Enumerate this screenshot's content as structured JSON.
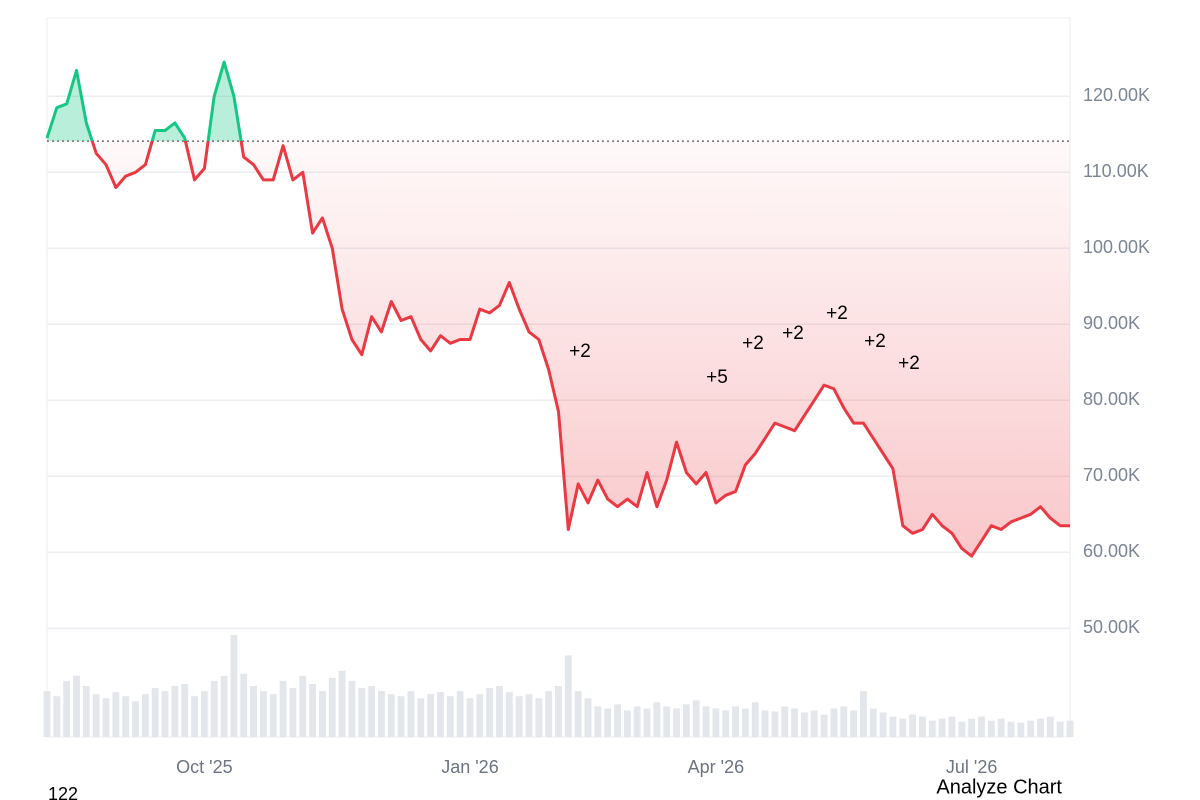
{
  "chart_data": {
    "type": "baseline",
    "baseline": 114100,
    "up_color": "#16c784",
    "down_color": "#ea3943",
    "volume_color": "#e3e7ec",
    "ylim": [
      35700,
      130300
    ],
    "yticks": [
      {
        "value": 50000,
        "label": "50.00K"
      },
      {
        "value": 60000,
        "label": "60.00K"
      },
      {
        "value": 70000,
        "label": "70.00K"
      },
      {
        "value": 80000,
        "label": "80.00K"
      },
      {
        "value": 90000,
        "label": "90.00K"
      },
      {
        "value": 100000,
        "label": "100.00K"
      },
      {
        "value": 110000,
        "label": "110.00K"
      },
      {
        "value": 120000,
        "label": "120.00K"
      }
    ],
    "grid": true,
    "vlim": [
      0,
      100
    ],
    "categories": [
      null,
      null,
      null,
      null,
      null,
      null,
      null,
      null,
      null,
      null,
      null,
      null,
      null,
      null,
      null,
      null,
      "Oct '25",
      null,
      null,
      null,
      null,
      null,
      null,
      null,
      null,
      null,
      null,
      null,
      null,
      null,
      null,
      null,
      null,
      null,
      null,
      null,
      null,
      null,
      null,
      null,
      null,
      null,
      null,
      "Jan '26",
      null,
      null,
      null,
      null,
      null,
      null,
      null,
      null,
      null,
      null,
      null,
      null,
      null,
      null,
      null,
      null,
      null,
      null,
      null,
      null,
      null,
      null,
      null,
      null,
      "Apr '26",
      null,
      null,
      null,
      null,
      null,
      null,
      null,
      null,
      null,
      null,
      null,
      null,
      null,
      null,
      null,
      null,
      null,
      null,
      null,
      null,
      null,
      null,
      null,
      null,
      null,
      "Jul '26",
      null,
      null,
      null,
      null,
      null,
      null,
      null,
      null,
      null,
      null
    ],
    "values": [
      114500,
      118500,
      119000,
      123400,
      116500,
      112500,
      111000,
      108000,
      109500,
      110000,
      111000,
      115500,
      115500,
      116500,
      114500,
      109000,
      110500,
      120000,
      124500,
      120000,
      112000,
      111000,
      109000,
      109000,
      113500,
      109000,
      110000,
      102000,
      104000,
      100000,
      92000,
      88000,
      86000,
      91000,
      89000,
      93000,
      90500,
      91000,
      88000,
      86500,
      88500,
      87500,
      88000,
      88000,
      92000,
      91500,
      92500,
      95500,
      92000,
      89000,
      88000,
      84000,
      78500,
      63000,
      69000,
      66500,
      69500,
      67000,
      66000,
      67000,
      66000,
      70500,
      66000,
      69500,
      74500,
      70500,
      69000,
      70500,
      66500,
      67500,
      68000,
      71500,
      73000,
      75000,
      77000,
      76500,
      76000,
      78000,
      80000,
      82000,
      81500,
      79000,
      77000,
      77000,
      75000,
      73000,
      71000,
      63500,
      62500,
      63000,
      65000,
      63500,
      62500,
      60500,
      59500,
      61500,
      63500,
      63000,
      64000,
      64500,
      65000,
      66000,
      64500,
      63500,
      63500
    ],
    "volume": [
      45,
      40,
      55,
      60,
      50,
      42,
      38,
      44,
      40,
      35,
      42,
      48,
      45,
      50,
      52,
      40,
      45,
      55,
      60,
      100,
      62,
      50,
      45,
      42,
      55,
      48,
      60,
      52,
      45,
      58,
      65,
      55,
      48,
      50,
      45,
      42,
      40,
      45,
      38,
      42,
      44,
      40,
      45,
      38,
      42,
      48,
      50,
      44,
      40,
      42,
      38,
      45,
      50,
      80,
      45,
      38,
      30,
      28,
      32,
      26,
      30,
      28,
      34,
      30,
      28,
      32,
      36,
      30,
      28,
      26,
      30,
      28,
      34,
      26,
      25,
      30,
      28,
      24,
      26,
      22,
      28,
      30,
      26,
      45,
      28,
      24,
      20,
      18,
      22,
      20,
      16,
      18,
      20,
      15,
      18,
      20,
      16,
      18,
      15,
      14,
      16,
      18,
      20,
      15,
      16
    ],
    "annotations": [
      "+2",
      "+5",
      "+2",
      "+2",
      "+2",
      "+2",
      "+2"
    ],
    "footer_left": "122",
    "action": "Analyze Chart"
  }
}
